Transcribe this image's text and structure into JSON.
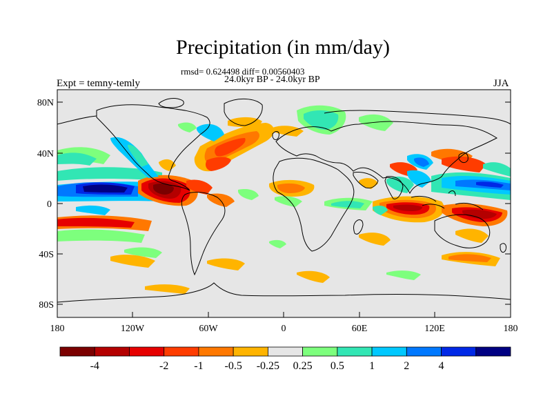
{
  "title": "Precipitation (in mm/day)",
  "stats_line": "rmsd= 0.624498 diff= 0.00560403",
  "period_line": "24.0kyr BP - 24.0kyr BP",
  "experiment_label": "Expt = temny-temly",
  "season_label": "JJA",
  "y_tick_labels": [
    "80N",
    "40N",
    "0",
    "40S",
    "80S"
  ],
  "x_tick_labels": [
    "180",
    "120W",
    "60W",
    "0",
    "60E",
    "120E",
    "180"
  ],
  "colorbar": {
    "colors": [
      "#7b0000",
      "#b40000",
      "#e60000",
      "#ff3c00",
      "#ff7800",
      "#ffb400",
      "#e6e6e6",
      "#7dff7d",
      "#32e6b4",
      "#00c8ff",
      "#0078ff",
      "#0028e6",
      "#000082"
    ],
    "labels": [
      "-4",
      "-2",
      "-1",
      "-0.5",
      "-0.25",
      "0.25",
      "0.5",
      "1",
      "2",
      "4"
    ]
  },
  "colors": {
    "background_field": "#e6e6e6",
    "coastline": "#000000"
  }
}
